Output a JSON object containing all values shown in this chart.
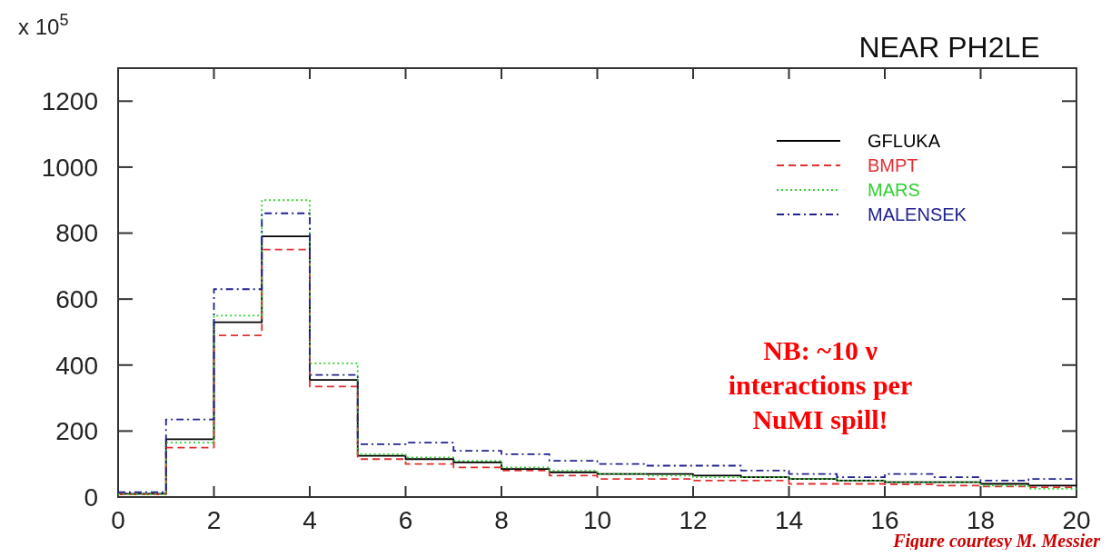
{
  "chart_data": {
    "type": "histogram",
    "title": "NEAR PH2LE",
    "bins": [
      0,
      1,
      2,
      3,
      4,
      5,
      6,
      7,
      8,
      9,
      10,
      11,
      12,
      13,
      14,
      15,
      16,
      17,
      18,
      19,
      20
    ],
    "series": [
      {
        "name": "GFLUKA",
        "color": "#000000",
        "line_style": "solid",
        "values": [
          10,
          175,
          530,
          790,
          355,
          125,
          115,
          105,
          85,
          75,
          70,
          70,
          65,
          60,
          55,
          50,
          45,
          45,
          40,
          35
        ]
      },
      {
        "name": "BMPT",
        "color": "#e03030",
        "line_style": "dashed",
        "values": [
          8,
          150,
          490,
          750,
          335,
          115,
          100,
          90,
          80,
          65,
          55,
          55,
          50,
          50,
          40,
          40,
          38,
          35,
          32,
          30
        ]
      },
      {
        "name": "MARS",
        "color": "#30d030",
        "line_style": "dotted",
        "values": [
          8,
          165,
          550,
          900,
          405,
          130,
          120,
          110,
          90,
          80,
          70,
          65,
          60,
          60,
          55,
          50,
          45,
          45,
          35,
          25
        ]
      },
      {
        "name": "MALENSEK",
        "color": "#202090",
        "line_style": "dashdot",
        "values": [
          15,
          235,
          630,
          860,
          370,
          160,
          165,
          140,
          130,
          110,
          100,
          95,
          95,
          80,
          70,
          60,
          70,
          60,
          50,
          55
        ]
      }
    ],
    "xlim": [
      0,
      20
    ],
    "xticks": [
      0,
      2,
      4,
      6,
      8,
      10,
      12,
      14,
      16,
      18,
      20
    ],
    "ylim": [
      0,
      1300
    ],
    "yticks": [
      0,
      200,
      400,
      600,
      800,
      1000,
      1200
    ],
    "legend": "top right",
    "annotations": [
      "x 10$^{5}$",
      "NB:  ~10 ν\ninteractions per\nNuMI spill!",
      "Figure courtesy M. Messier"
    ]
  }
}
